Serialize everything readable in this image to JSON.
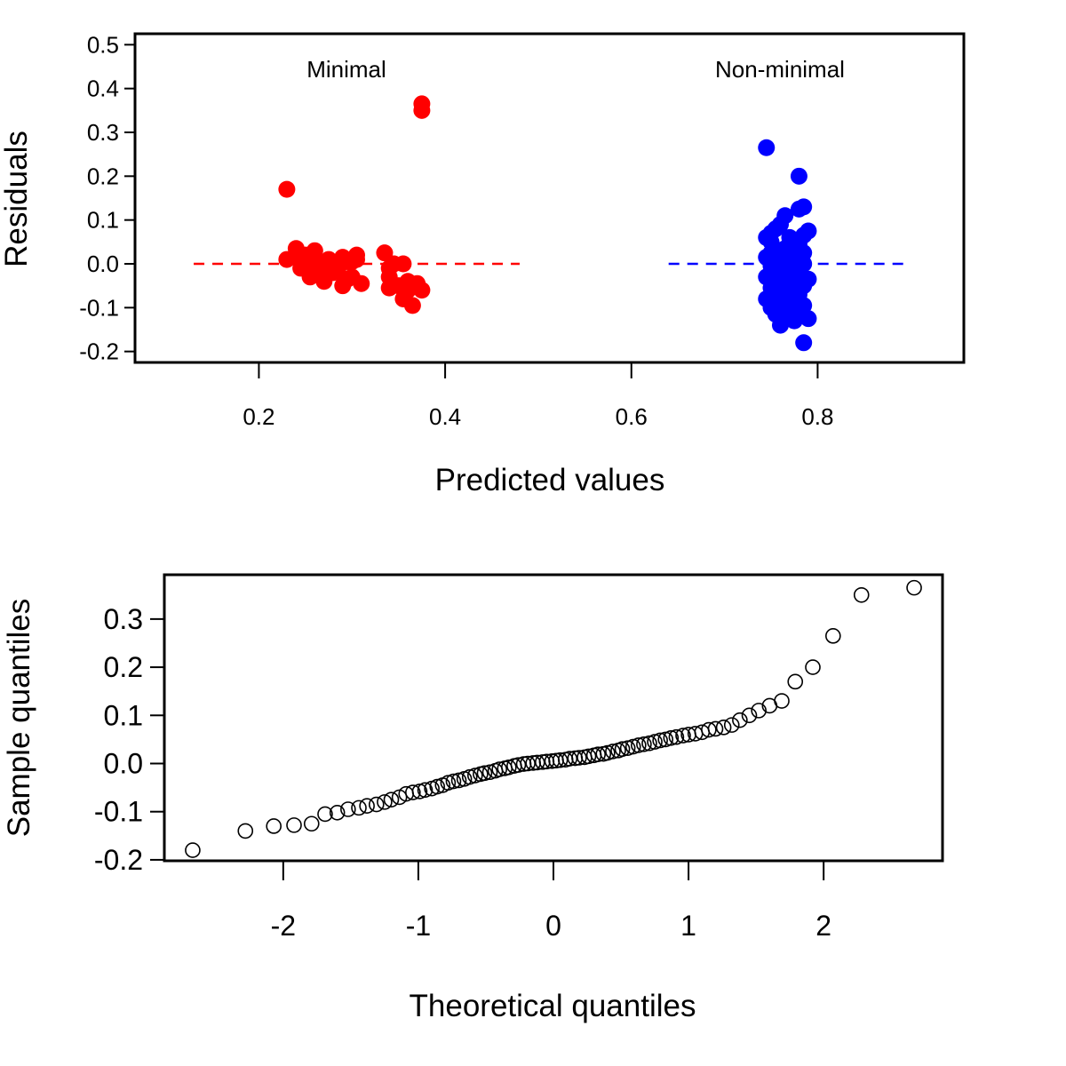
{
  "chart_data": [
    {
      "type": "scatter",
      "xlabel": "Predicted values",
      "ylabel": "Residuals",
      "xlim": [
        0.067,
        0.957
      ],
      "ylim": [
        -0.225,
        0.525
      ],
      "xticks": [
        "0.2",
        "0.4",
        "0.6",
        "0.8"
      ],
      "yticks": [
        "-0.2",
        "-0.1",
        "0.0",
        "0.1",
        "0.2",
        "0.3",
        "0.4",
        "0.5"
      ],
      "annotations": [
        "Minimal",
        "Non-minimal"
      ],
      "colors": {
        "minimal": "#ff0000",
        "non_minimal": "#0000ff"
      },
      "series": [
        {
          "x": [
            0.23,
            0.375,
            0.375,
            0.23,
            0.24,
            0.245,
            0.25,
            0.255,
            0.26,
            0.265,
            0.27,
            0.275,
            0.28,
            0.285,
            0.29,
            0.295,
            0.3,
            0.305,
            0.31,
            0.335,
            0.34,
            0.345,
            0.35,
            0.355,
            0.36,
            0.365,
            0.37,
            0.375,
            0.245,
            0.265,
            0.285,
            0.29,
            0.305,
            0.34,
            0.355,
            0.36,
            0.255,
            0.275,
            0.295,
            0.26,
            0.3,
            0.34
          ],
          "y": [
            0.17,
            0.365,
            0.35,
            0.01,
            0.035,
            -0.01,
            0.02,
            -0.03,
            0.03,
            0.0,
            -0.04,
            0.01,
            -0.02,
            0.0,
            -0.05,
            0.005,
            -0.03,
            0.01,
            -0.045,
            0.025,
            -0.03,
            0.0,
            -0.05,
            -0.08,
            -0.06,
            -0.095,
            -0.045,
            -0.06,
            0.01,
            -0.02,
            -0.01,
            0.015,
            0.02,
            -0.055,
            0.0,
            -0.04,
            0.005,
            -0.005,
            -0.035,
            -0.015,
            0.005,
            -0.01
          ]
        },
        {
          "x": [
            0.745,
            0.78,
            0.785,
            0.78,
            0.79,
            0.745,
            0.765,
            0.76,
            0.75,
            0.77,
            0.755,
            0.785,
            0.765,
            0.745,
            0.775,
            0.76,
            0.785,
            0.75,
            0.77,
            0.78,
            0.755,
            0.765,
            0.745,
            0.79,
            0.775,
            0.76,
            0.785,
            0.75,
            0.77,
            0.755,
            0.78,
            0.765,
            0.745,
            0.775,
            0.76,
            0.785,
            0.75,
            0.77,
            0.78,
            0.755,
            0.765,
            0.79,
            0.775,
            0.76,
            0.785,
            0.75,
            0.77,
            0.755,
            0.78,
            0.765,
            0.785,
            0.75,
            0.77,
            0.775,
            0.76
          ],
          "y": [
            0.265,
            0.2,
            0.13,
            0.125,
            0.075,
            0.06,
            0.11,
            0.09,
            0.05,
            0.04,
            0.03,
            0.025,
            0.02,
            0.015,
            0.01,
            0.005,
            0.0,
            -0.005,
            -0.01,
            -0.015,
            -0.02,
            -0.025,
            -0.03,
            -0.035,
            -0.04,
            -0.045,
            -0.05,
            -0.055,
            -0.06,
            -0.065,
            -0.07,
            -0.075,
            -0.08,
            -0.085,
            -0.09,
            -0.095,
            -0.1,
            -0.105,
            -0.11,
            -0.115,
            -0.12,
            -0.125,
            -0.13,
            -0.14,
            -0.18,
            0.07,
            0.06,
            0.08,
            0.045,
            0.035,
            0.065,
            0.025,
            -0.015,
            -0.03,
            -0.01
          ]
        }
      ]
    },
    {
      "type": "scatter",
      "xlabel": "Theoretical quantiles",
      "ylabel": "Sample quantiles",
      "xlim": [
        -2.88,
        2.88
      ],
      "ylim": [
        -0.202,
        0.392
      ],
      "xticks": [
        "-2",
        "-1",
        "0",
        "1",
        "2"
      ],
      "yticks": [
        "-0.2",
        "-0.1",
        "0.0",
        "0.1",
        "0.2",
        "0.3"
      ],
      "series": [
        {
          "x": [
            -2.67,
            -2.28,
            -2.07,
            -1.92,
            -1.79,
            -1.69,
            -1.6,
            -1.52,
            -1.44,
            -1.38,
            -1.31,
            -1.25,
            -1.2,
            -1.14,
            -1.09,
            -1.04,
            -0.99,
            -0.95,
            -0.9,
            -0.86,
            -0.82,
            -0.78,
            -0.74,
            -0.7,
            -0.66,
            -0.62,
            -0.58,
            -0.54,
            -0.51,
            -0.47,
            -0.43,
            -0.4,
            -0.36,
            -0.33,
            -0.29,
            -0.26,
            -0.22,
            -0.19,
            -0.15,
            -0.12,
            -0.08,
            -0.05,
            -0.01,
            0.02,
            0.05,
            0.09,
            0.12,
            0.16,
            0.19,
            0.23,
            0.26,
            0.3,
            0.33,
            0.37,
            0.4,
            0.44,
            0.48,
            0.51,
            0.55,
            0.59,
            0.63,
            0.67,
            0.71,
            0.75,
            0.79,
            0.83,
            0.87,
            0.91,
            0.96,
            1.0,
            1.05,
            1.1,
            1.15,
            1.2,
            1.26,
            1.32,
            1.38,
            1.45,
            1.52,
            1.6,
            1.69,
            1.79,
            1.92,
            2.07,
            2.28,
            2.67
          ],
          "y": [
            -0.18,
            -0.14,
            -0.13,
            -0.128,
            -0.125,
            -0.105,
            -0.102,
            -0.095,
            -0.092,
            -0.088,
            -0.085,
            -0.08,
            -0.075,
            -0.07,
            -0.063,
            -0.06,
            -0.058,
            -0.055,
            -0.052,
            -0.048,
            -0.045,
            -0.04,
            -0.037,
            -0.035,
            -0.032,
            -0.028,
            -0.025,
            -0.022,
            -0.02,
            -0.018,
            -0.015,
            -0.012,
            -0.01,
            -0.008,
            -0.005,
            -0.003,
            -0.001,
            0.0,
            0.001,
            0.002,
            0.003,
            0.004,
            0.005,
            0.006,
            0.007,
            0.008,
            0.01,
            0.011,
            0.012,
            0.013,
            0.015,
            0.017,
            0.019,
            0.02,
            0.022,
            0.025,
            0.027,
            0.03,
            0.032,
            0.035,
            0.038,
            0.04,
            0.042,
            0.045,
            0.048,
            0.05,
            0.053,
            0.055,
            0.058,
            0.06,
            0.062,
            0.065,
            0.07,
            0.072,
            0.075,
            0.08,
            0.09,
            0.1,
            0.11,
            0.12,
            0.13,
            0.17,
            0.2,
            0.265,
            0.35,
            0.365
          ]
        }
      ]
    }
  ]
}
